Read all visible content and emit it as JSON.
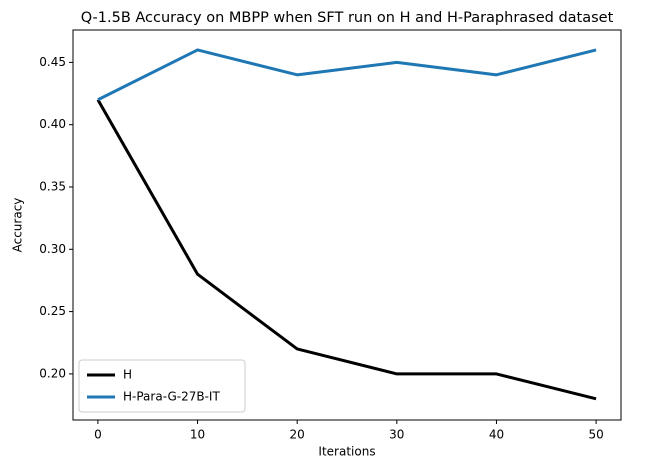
{
  "chart_data": {
    "type": "line",
    "title": "Q-1.5B Accuracy on MBPP when SFT run on H and H-Paraphrased dataset",
    "x_label": "Iterations",
    "y_label": "Accuracy",
    "x": [
      0,
      10,
      20,
      30,
      40,
      50
    ],
    "series": [
      {
        "name": "H",
        "color": "#000000",
        "values": [
          0.42,
          0.28,
          0.22,
          0.2,
          0.2,
          0.18
        ]
      },
      {
        "name": "H-Para-G-27B-IT",
        "color": "#1f77b4",
        "values": [
          0.42,
          0.46,
          0.44,
          0.45,
          0.44,
          0.46
        ]
      }
    ],
    "xlim": [
      -2.5,
      52.5
    ],
    "xticks": [
      0,
      10,
      20,
      30,
      40,
      50
    ],
    "ylim": [
      0.163,
      0.476
    ],
    "yticks": [
      {
        "value": 0.2,
        "label": "0.20"
      },
      0.25,
      {
        "value": 0.3,
        "label": "0.30"
      },
      0.35,
      {
        "value": 0.4,
        "label": "0.40"
      },
      0.45
    ],
    "grid": false,
    "legend": "lower left"
  }
}
